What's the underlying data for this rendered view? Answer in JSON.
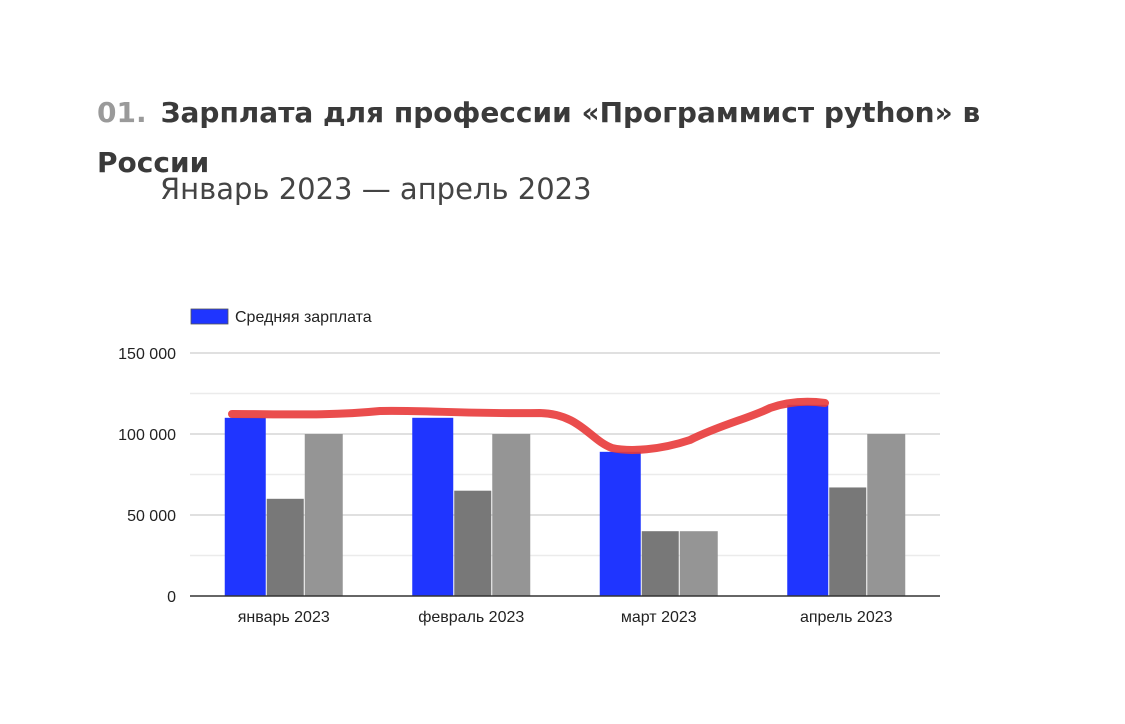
{
  "heading": {
    "number": "01.",
    "text": "Зарплата для профессии «Программист python» в России"
  },
  "subtitle": "Январь 2023 — апрель 2023",
  "chart_data": {
    "type": "bar",
    "categories": [
      "январь 2023",
      "февраль 2023",
      "март 2023",
      "апрель 2023"
    ],
    "series": [
      {
        "name": "Средняя зарплата",
        "color": "#1f35ff",
        "values": [
          110000,
          110000,
          89000,
          118000
        ]
      },
      {
        "color": "#787878",
        "values": [
          60000,
          65000,
          40000,
          67000
        ]
      },
      {
        "color": "#959595",
        "values": [
          100000,
          100000,
          40000,
          100000
        ]
      }
    ],
    "ylim": [
      0,
      150000
    ],
    "yticks": [
      0,
      50000,
      100000,
      150000
    ],
    "ytick_labels": [
      "0",
      "50 000",
      "100 000",
      "150 000"
    ],
    "grid": true,
    "legend": "top-left",
    "annotation_color": "#e83a3a"
  }
}
